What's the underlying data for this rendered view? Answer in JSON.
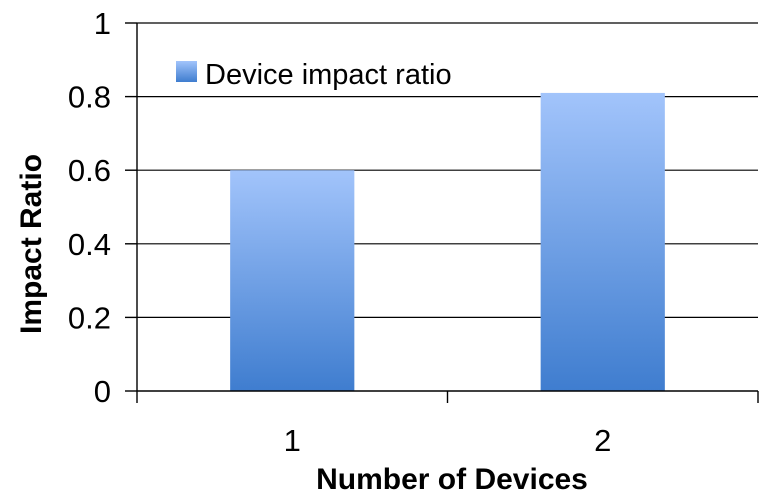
{
  "chart_data": {
    "type": "bar",
    "categories": [
      "1",
      "2"
    ],
    "series": [
      {
        "name": "Device impact ratio",
        "values": [
          0.6,
          0.81
        ]
      }
    ],
    "xlabel": "Number of Devices",
    "ylabel": "Impact Ratio",
    "ylim": [
      0,
      1
    ],
    "yticks": [
      0,
      0.2,
      0.4,
      0.6,
      0.8,
      1
    ],
    "ytick_labels": [
      "0",
      "0.2",
      "0.4",
      "0.6",
      "0.8",
      "1"
    ],
    "grid": true,
    "legend_position": "top-left",
    "colors": {
      "bar_top": "#a2c4fb",
      "bar_bottom": "#3f7dcf",
      "gridline": "#000000",
      "axis": "#000000"
    }
  }
}
